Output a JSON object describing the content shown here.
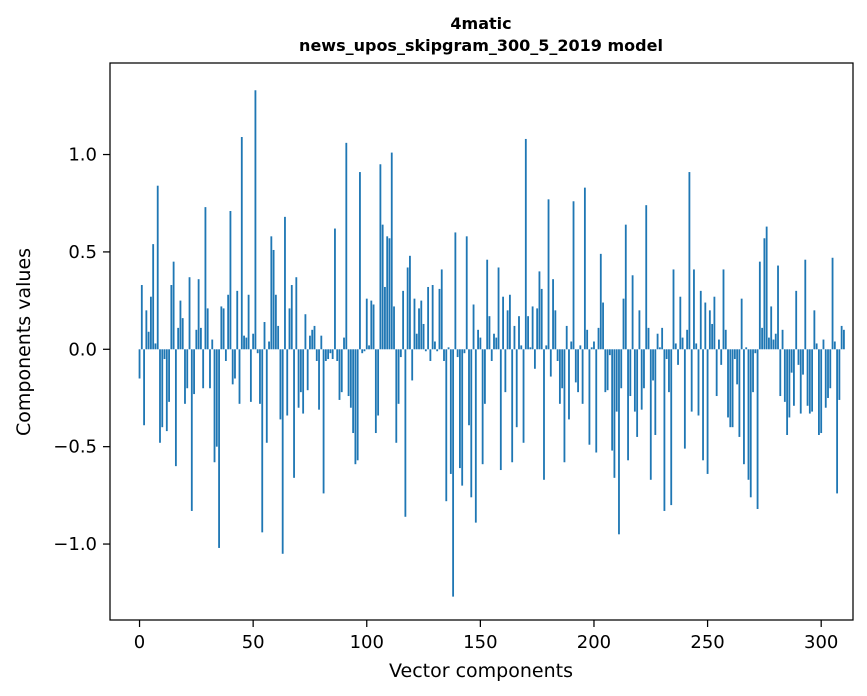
{
  "chart_data": {
    "type": "bar",
    "title": "4matic",
    "subtitle": "news_upos_skipgram_300_5_2019 model",
    "xlabel": "Vector components",
    "ylabel": "Components values",
    "xlim": [
      -13,
      314
    ],
    "ylim": [
      -1.39,
      1.47
    ],
    "xticks": [
      0,
      50,
      100,
      150,
      200,
      250,
      300
    ],
    "xtick_labels": [
      "0",
      "50",
      "100",
      "150",
      "200",
      "250",
      "300"
    ],
    "yticks": [
      -1.0,
      -0.5,
      0.0,
      0.5,
      1.0
    ],
    "ytick_labels": [
      "−1.0",
      "−0.5",
      "0.0",
      "0.5",
      "1.0"
    ],
    "grid": false,
    "bar_color": "#1f77b4",
    "values": [
      -0.15,
      0.33,
      -0.39,
      0.2,
      0.09,
      0.27,
      0.54,
      0.03,
      0.84,
      -0.48,
      -0.4,
      -0.05,
      -0.42,
      -0.27,
      0.33,
      0.45,
      -0.6,
      0.11,
      0.25,
      0.16,
      -0.28,
      -0.2,
      0.37,
      -0.83,
      -0.23,
      0.1,
      0.36,
      0.11,
      -0.2,
      0.73,
      0.21,
      -0.2,
      0.05,
      -0.58,
      -0.5,
      -1.02,
      0.22,
      0.21,
      -0.06,
      0.28,
      0.71,
      -0.18,
      -0.15,
      0.3,
      -0.28,
      1.09,
      0.07,
      0.06,
      0.28,
      -0.27,
      0.08,
      1.33,
      -0.02,
      -0.28,
      -0.94,
      0.14,
      -0.48,
      0.04,
      0.58,
      0.51,
      0.28,
      0.12,
      -0.36,
      -1.05,
      0.68,
      -0.34,
      0.21,
      0.33,
      -0.66,
      0.37,
      -0.3,
      -0.22,
      -0.33,
      0.18,
      -0.21,
      0.07,
      0.1,
      0.12,
      -0.06,
      -0.31,
      0.07,
      -0.74,
      -0.06,
      -0.05,
      -0.02,
      -0.05,
      0.62,
      -0.06,
      -0.26,
      -0.22,
      0.06,
      1.06,
      -0.24,
      -0.3,
      -0.43,
      -0.59,
      -0.57,
      0.91,
      -0.02,
      -0.01,
      0.26,
      0.02,
      0.25,
      0.23,
      -0.43,
      -0.34,
      0.95,
      0.64,
      0.32,
      0.58,
      0.57,
      1.01,
      0.22,
      -0.48,
      -0.28,
      -0.04,
      0.3,
      -0.86,
      0.42,
      0.48,
      -0.16,
      0.26,
      0.08,
      0.21,
      0.25,
      0.13,
      -0.01,
      0.32,
      -0.06,
      0.33,
      0.04,
      -0.01,
      0.31,
      0.41,
      -0.06,
      -0.78,
      0.01,
      -0.64,
      -1.27,
      0.6,
      -0.04,
      -0.61,
      -0.7,
      -0.02,
      0.58,
      -0.39,
      -0.76,
      0.23,
      -0.89,
      0.1,
      0.06,
      -0.59,
      -0.28,
      0.46,
      0.17,
      -0.06,
      0.08,
      0.06,
      0.42,
      -0.62,
      0.27,
      -0.22,
      0.2,
      0.28,
      -0.58,
      0.12,
      -0.4,
      0.17,
      0.02,
      -0.48,
      1.08,
      0.17,
      0.01,
      0.22,
      -0.1,
      0.21,
      0.4,
      0.31,
      -0.67,
      0.02,
      0.77,
      -0.14,
      0.36,
      0.2,
      -0.06,
      -0.28,
      -0.2,
      -0.58,
      0.12,
      -0.36,
      0.04,
      0.76,
      -0.17,
      -0.22,
      0.02,
      -0.28,
      0.83,
      0.1,
      -0.49,
      0.01,
      0.04,
      -0.53,
      0.11,
      0.49,
      0.24,
      -0.22,
      -0.21,
      -0.03,
      -0.52,
      -0.66,
      -0.32,
      -0.95,
      -0.2,
      0.26,
      0.64,
      -0.57,
      -0.24,
      0.38,
      -0.32,
      -0.45,
      0.2,
      -0.31,
      -0.2,
      0.74,
      0.11,
      -0.67,
      -0.16,
      -0.44,
      0.08,
      0.01,
      0.11,
      -0.83,
      -0.05,
      -0.22,
      -0.8,
      0.41,
      0.03,
      -0.08,
      0.27,
      0.06,
      -0.51,
      0.1,
      0.91,
      -0.32,
      0.41,
      0.03,
      -0.34,
      0.3,
      -0.57,
      0.24,
      -0.64,
      0.2,
      0.13,
      0.27,
      -0.24,
      0.05,
      -0.08,
      0.41,
      0.1,
      -0.35,
      -0.4,
      -0.4,
      -0.05,
      -0.18,
      -0.45,
      0.26,
      -0.59,
      0.01,
      -0.67,
      -0.76,
      -0.22,
      -0.02,
      -0.82,
      0.45,
      0.11,
      0.57,
      0.63,
      0.06,
      0.22,
      0.05,
      0.08,
      0.43,
      -0.24,
      0.1,
      -0.27,
      -0.44,
      -0.35,
      -0.12,
      -0.29,
      0.3,
      -0.08,
      -0.33,
      -0.13,
      0.46,
      -0.29,
      -0.33,
      -0.32,
      0.2,
      0.03,
      -0.44,
      -0.43,
      0.05,
      -0.3,
      -0.25,
      -0.2,
      0.47,
      0.04,
      -0.74,
      -0.26,
      0.12,
      0.1
    ]
  }
}
